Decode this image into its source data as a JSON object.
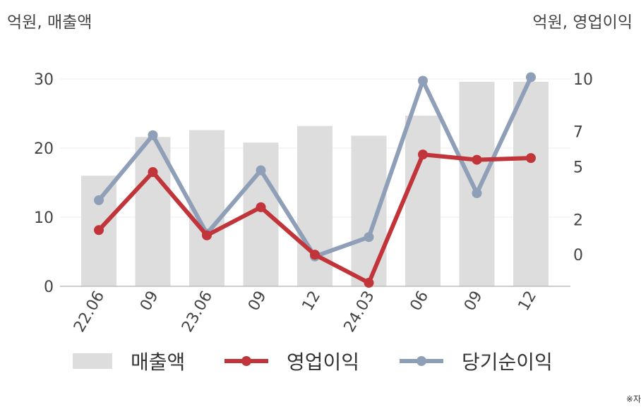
{
  "header": {
    "left_unit": "억원, 매출액",
    "right_unit": "억원, 영업이익"
  },
  "note": "※자",
  "chart_data": {
    "type": "bar+line",
    "categories": [
      "22.06",
      "09",
      "23.06",
      "09",
      "12",
      "24.03",
      "06",
      "09",
      "12"
    ],
    "y_left": {
      "ticks": [
        0,
        10,
        20,
        30
      ],
      "range": [
        0,
        30
      ]
    },
    "y_right": {
      "ticks": [
        0,
        2,
        5,
        7,
        10
      ],
      "range": [
        -1.8,
        10
      ]
    },
    "grid": true,
    "legend_position": "bottom",
    "series": [
      {
        "name": "매출액",
        "type": "bar",
        "axis": "left",
        "color": "#dddddd",
        "values": [
          16.0,
          21.6,
          22.6,
          20.8,
          23.2,
          21.8,
          24.7,
          29.6,
          29.6
        ]
      },
      {
        "name": "영업이익",
        "type": "line",
        "axis": "right",
        "color": "#c1343a",
        "values": [
          1.4,
          4.7,
          1.1,
          2.7,
          0.0,
          -1.6,
          5.7,
          5.4,
          5.5
        ]
      },
      {
        "name": "당기순이익",
        "type": "line",
        "axis": "right",
        "color": "#8f9fb8",
        "values": [
          3.1,
          6.8,
          1.2,
          4.8,
          -0.1,
          1.0,
          9.9,
          3.5,
          10.1
        ]
      }
    ]
  }
}
